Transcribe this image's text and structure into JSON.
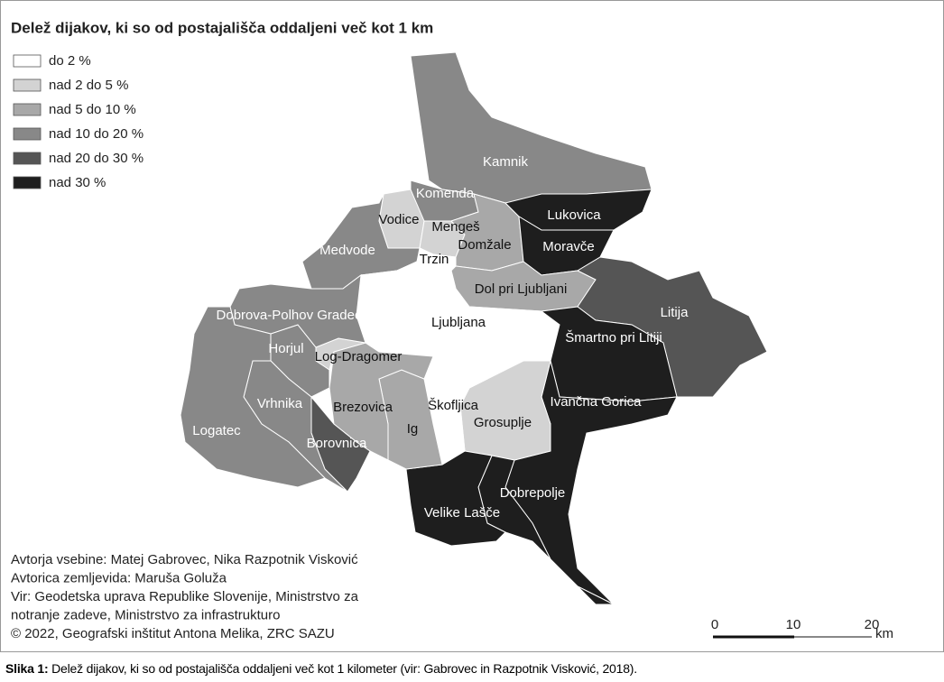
{
  "title": "Delež dijakov, ki so od postajališča oddaljeni več kot 1 km",
  "legend": [
    {
      "label": "do 2 %",
      "color": "#ffffff"
    },
    {
      "label": "nad 2 do 5 %",
      "color": "#d3d3d3"
    },
    {
      "label": "nad 5 do 10 %",
      "color": "#a8a8a8"
    },
    {
      "label": "nad 10 do 20 %",
      "color": "#888888"
    },
    {
      "label": "nad 20 do 30 %",
      "color": "#555555"
    },
    {
      "label": "nad 30 %",
      "color": "#1e1e1e"
    }
  ],
  "municipalities": [
    {
      "name": "Kamnik",
      "class": 3
    },
    {
      "name": "Komenda",
      "class": 3
    },
    {
      "name": "Vodice",
      "class": 1
    },
    {
      "name": "Mengeš",
      "class": 1
    },
    {
      "name": "Domžale",
      "class": 2
    },
    {
      "name": "Trzin",
      "class": 0
    },
    {
      "name": "Lukovica",
      "class": 5
    },
    {
      "name": "Moravče",
      "class": 5
    },
    {
      "name": "Medvode",
      "class": 3
    },
    {
      "name": "Dol pri Ljubljani",
      "class": 2
    },
    {
      "name": "Ljubljana",
      "class": 0
    },
    {
      "name": "Litija",
      "class": 4
    },
    {
      "name": "Šmartno pri Litiji",
      "class": 5
    },
    {
      "name": "Ivančna Gorica",
      "class": 5
    },
    {
      "name": "Grosuplje",
      "class": 1
    },
    {
      "name": "Dobrepolje",
      "class": 5
    },
    {
      "name": "Velike Lašče",
      "class": 5
    },
    {
      "name": "Škofljica",
      "class": 0
    },
    {
      "name": "Ig",
      "class": 2
    },
    {
      "name": "Brezovica",
      "class": 2
    },
    {
      "name": "Borovnica",
      "class": 4
    },
    {
      "name": "Log-Dragomer",
      "class": 1
    },
    {
      "name": "Horjul",
      "class": 3
    },
    {
      "name": "Dobrova-Polhov Gradec",
      "class": 3
    },
    {
      "name": "Vrhnika",
      "class": 3
    },
    {
      "name": "Logatec",
      "class": 3
    }
  ],
  "credits": [
    "Avtorja vsebine: Matej Gabrovec, Nika Razpotnik Visković",
    "Avtorica zemljevida: Maruša Goluža",
    "Vir: Geodetska uprava Republike Slovenije, Ministrstvo za",
    "notranje zadeve, Ministrstvo za infrastrukturo",
    "© 2022, Geografski inštitut Antona Melika, ZRC SAZU"
  ],
  "scale": {
    "ticks": [
      "0",
      "10",
      "20"
    ],
    "unit": "km"
  },
  "caption": {
    "label": "Slika 1:",
    "text": " Delež dijakov, ki so od postajališča oddaljeni več kot 1 kilometer (vir: Gabrovec in Razpotnik Visković, 2018)."
  }
}
